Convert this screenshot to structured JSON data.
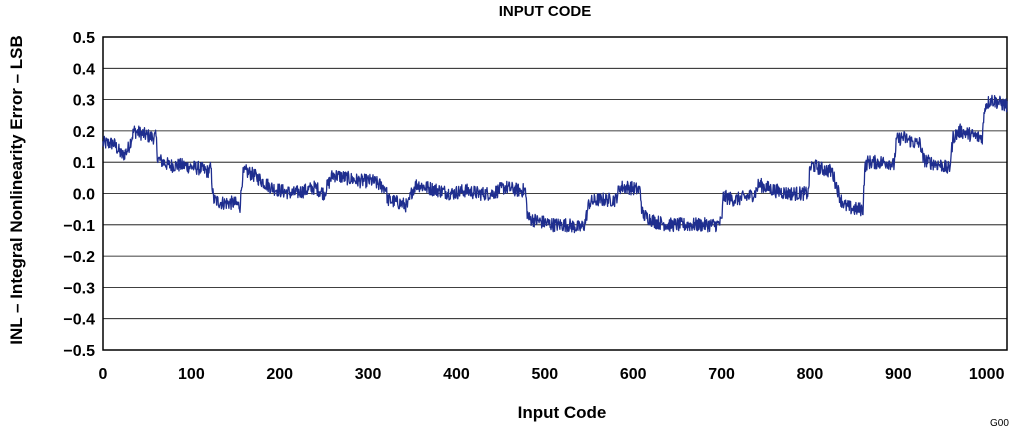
{
  "chart_data": {
    "type": "line",
    "title": "INPUT CODE",
    "xlabel": "Input Code",
    "ylabel": "INL – Integral Nonlinearity Error – LSB",
    "figure_id": "G00",
    "xlim": [
      0,
      1023
    ],
    "ylim": [
      -0.5,
      0.5
    ],
    "x_ticks": [
      "0",
      "100",
      "200",
      "300",
      "400",
      "500",
      "600",
      "700",
      "800",
      "900",
      "1000"
    ],
    "y_ticks": [
      "0.5",
      "0.4",
      "0.3",
      "0.2",
      "0.1",
      "0.0",
      "−0.1",
      "−0.2",
      "−0.3",
      "−0.4",
      "−0.5"
    ],
    "grid": "horizontal",
    "series": [
      {
        "color": "#1f2e8f",
        "x": [
          0,
          12,
          22,
          28,
          35,
          45,
          55,
          60,
          62,
          75,
          90,
          110,
          118,
          122,
          125,
          135,
          148,
          155,
          158,
          162,
          170,
          185,
          190,
          200,
          215,
          230,
          240,
          250,
          255,
          260,
          275,
          290,
          305,
          318,
          320,
          322,
          335,
          345,
          350,
          355,
          365,
          380,
          395,
          410,
          425,
          440,
          455,
          470,
          478,
          480,
          482,
          495,
          510,
          525,
          540,
          545,
          550,
          560,
          575,
          580,
          585,
          595,
          608,
          610,
          612,
          625,
          640,
          660,
          680,
          695,
          700,
          702,
          715,
          730,
          738,
          742,
          750,
          760,
          775,
          790,
          798,
          800,
          803,
          812,
          825,
          835,
          838,
          840,
          850,
          860,
          862,
          865,
          875,
          890,
          895,
          898,
          905,
          920,
          925,
          928,
          935,
          950,
          955,
          958,
          962,
          970,
          990,
          995,
          998,
          1005,
          1023
        ],
        "y": [
          0.16,
          0.16,
          0.12,
          0.14,
          0.2,
          0.19,
          0.18,
          0.18,
          0.11,
          0.09,
          0.09,
          0.08,
          0.07,
          0.08,
          -0.02,
          -0.03,
          -0.03,
          -0.04,
          0.06,
          0.07,
          0.06,
          0.03,
          0.02,
          0.01,
          0.0,
          0.01,
          0.02,
          0.0,
          0.03,
          0.06,
          0.05,
          0.04,
          0.04,
          0.02,
          0.02,
          -0.02,
          -0.03,
          -0.04,
          0.01,
          0.03,
          0.02,
          0.01,
          0.0,
          0.01,
          0.0,
          0.0,
          0.02,
          0.01,
          0.01,
          -0.06,
          -0.08,
          -0.09,
          -0.1,
          -0.1,
          -0.11,
          -0.1,
          -0.03,
          -0.02,
          -0.02,
          -0.02,
          0.02,
          0.02,
          0.01,
          -0.06,
          -0.07,
          -0.09,
          -0.1,
          -0.1,
          -0.1,
          -0.1,
          -0.09,
          -0.01,
          -0.02,
          -0.01,
          0.0,
          0.03,
          0.02,
          0.01,
          0.0,
          0.0,
          0.0,
          0.08,
          0.09,
          0.08,
          0.07,
          -0.02,
          -0.03,
          -0.04,
          -0.05,
          -0.05,
          0.08,
          0.1,
          0.1,
          0.1,
          0.09,
          0.17,
          0.18,
          0.16,
          0.16,
          0.11,
          0.1,
          0.09,
          0.08,
          0.08,
          0.18,
          0.2,
          0.18,
          0.18,
          0.28,
          0.3,
          0.28
        ]
      }
    ]
  }
}
